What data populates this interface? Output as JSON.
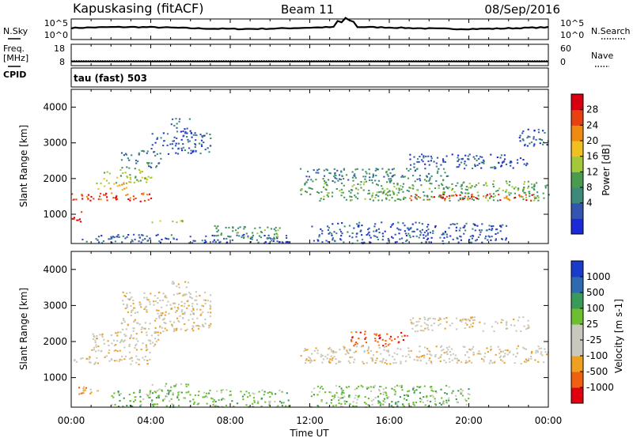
{
  "header": {
    "title": "Kapuskasing (fitACF)",
    "beam": "Beam 11",
    "date": "08/Sep/2016"
  },
  "noise_panel": {
    "left_label": "N.Sky",
    "right_label": "N.Search",
    "ticks": [
      "10^5",
      "10^0"
    ]
  },
  "freq_panel": {
    "left_label_line1": "Freq.",
    "left_label_line2": "[MHz]",
    "cpid_label": "CPID",
    "left_ticks": [
      "18",
      "8"
    ],
    "right_label": "Nave",
    "right_ticks": [
      "60",
      "0"
    ],
    "freq_value": 9.6,
    "nave_value": 12
  },
  "program_panel": {
    "label": "tau (fast) 503"
  },
  "colors": {
    "power": [
      "#1a2ad8",
      "#3355b0",
      "#3d8a7a",
      "#4a9a50",
      "#a3c83a",
      "#f0c020",
      "#f08a10",
      "#e84010",
      "#d80010"
    ],
    "velocity": [
      "#e00010",
      "#f06010",
      "#f0a020",
      "#c8c8bc",
      "#c8c8bc",
      "#6cc030",
      "#3a9a5a",
      "#2e6ab0",
      "#1a3ccc"
    ]
  },
  "colorbars": {
    "power": {
      "label": "Power [dB]",
      "ticks": [
        "28",
        "24",
        "20",
        "16",
        "12",
        "8",
        "4"
      ]
    },
    "velocity": {
      "label": "Velocity [m s-1]",
      "ticks": [
        "1000",
        "500",
        "100",
        "25",
        "-25",
        "-100",
        "-500",
        "-1000"
      ]
    }
  },
  "x_axis": {
    "label": "Time UT",
    "ticks": [
      "00:00",
      "04:00",
      "08:00",
      "12:00",
      "16:00",
      "20:00",
      "00:00"
    ]
  },
  "chart_data": {
    "type": "heatmap",
    "x_range_hours": [
      0,
      24
    ],
    "y_range_km": [
      180,
      4500
    ],
    "ylabel": "Slant Range [km]",
    "y_ticks": [
      1000,
      2000,
      3000,
      4000
    ],
    "power_bands": [
      {
        "t0": 0.0,
        "t1": 4.0,
        "r0": 1380,
        "r1": 1620,
        "level": 7
      },
      {
        "t0": 0.0,
        "t1": 0.5,
        "r0": 800,
        "r1": 1100,
        "level": 8
      },
      {
        "t0": 1.0,
        "t1": 3.0,
        "r0": 1700,
        "r1": 1900,
        "level": 5
      },
      {
        "t0": 1.5,
        "t1": 4.0,
        "r0": 1900,
        "r1": 2300,
        "level": 4
      },
      {
        "t0": 2.5,
        "t1": 4.5,
        "r0": 2300,
        "r1": 2800,
        "level": 2
      },
      {
        "t0": 4.0,
        "t1": 7.0,
        "r0": 2700,
        "r1": 3300,
        "level": 1
      },
      {
        "t0": 5.0,
        "t1": 6.0,
        "r0": 3300,
        "r1": 3700,
        "level": 1
      },
      {
        "t0": 0.5,
        "t1": 11.0,
        "r0": 200,
        "r1": 450,
        "level": 1
      },
      {
        "t0": 7.0,
        "t1": 10.5,
        "r0": 350,
        "r1": 700,
        "level": 3
      },
      {
        "t0": 4.0,
        "t1": 6.0,
        "r0": 750,
        "r1": 850,
        "level": 4
      },
      {
        "t0": 11.5,
        "t1": 24.0,
        "r0": 1400,
        "r1": 1650,
        "level": 3
      },
      {
        "t0": 17.0,
        "t1": 23.5,
        "r0": 1400,
        "r1": 1600,
        "level": 7
      },
      {
        "t0": 11.5,
        "t1": 24.0,
        "r0": 1650,
        "r1": 1950,
        "level": 3
      },
      {
        "t0": 11.5,
        "t1": 19.0,
        "r0": 1950,
        "r1": 2300,
        "level": 2
      },
      {
        "t0": 17.0,
        "t1": 23.0,
        "r0": 2300,
        "r1": 2700,
        "level": 1
      },
      {
        "t0": 12.0,
        "t1": 22.0,
        "r0": 200,
        "r1": 800,
        "level": 1
      },
      {
        "t0": 22.5,
        "t1": 24.0,
        "r0": 2900,
        "r1": 3400,
        "level": 1
      }
    ],
    "velocity_bands": [
      {
        "t0": 0.0,
        "t1": 4.0,
        "r0": 1380,
        "r1": 1620,
        "level": 3
      },
      {
        "t0": 1.0,
        "t1": 4.5,
        "r0": 1700,
        "r1": 2300,
        "level": 3
      },
      {
        "t0": 2.5,
        "t1": 7.0,
        "r0": 2300,
        "r1": 3400,
        "level": 3
      },
      {
        "t0": 5.0,
        "t1": 6.0,
        "r0": 3300,
        "r1": 3700,
        "level": 3
      },
      {
        "t0": 0.3,
        "t1": 1.5,
        "r0": 550,
        "r1": 800,
        "level": 2
      },
      {
        "t0": 4.0,
        "t1": 6.0,
        "r0": 750,
        "r1": 850,
        "level": 5
      },
      {
        "t0": 2.0,
        "t1": 11.0,
        "r0": 200,
        "r1": 700,
        "level": 5
      },
      {
        "t0": 11.5,
        "t1": 24.0,
        "r0": 1400,
        "r1": 1900,
        "level": 3
      },
      {
        "t0": 14.0,
        "t1": 17.0,
        "r0": 1900,
        "r1": 2300,
        "level": 1
      },
      {
        "t0": 17.0,
        "t1": 23.0,
        "r0": 2300,
        "r1": 2700,
        "level": 3
      },
      {
        "t0": 12.0,
        "t1": 20.0,
        "r0": 200,
        "r1": 800,
        "level": 5
      }
    ]
  }
}
